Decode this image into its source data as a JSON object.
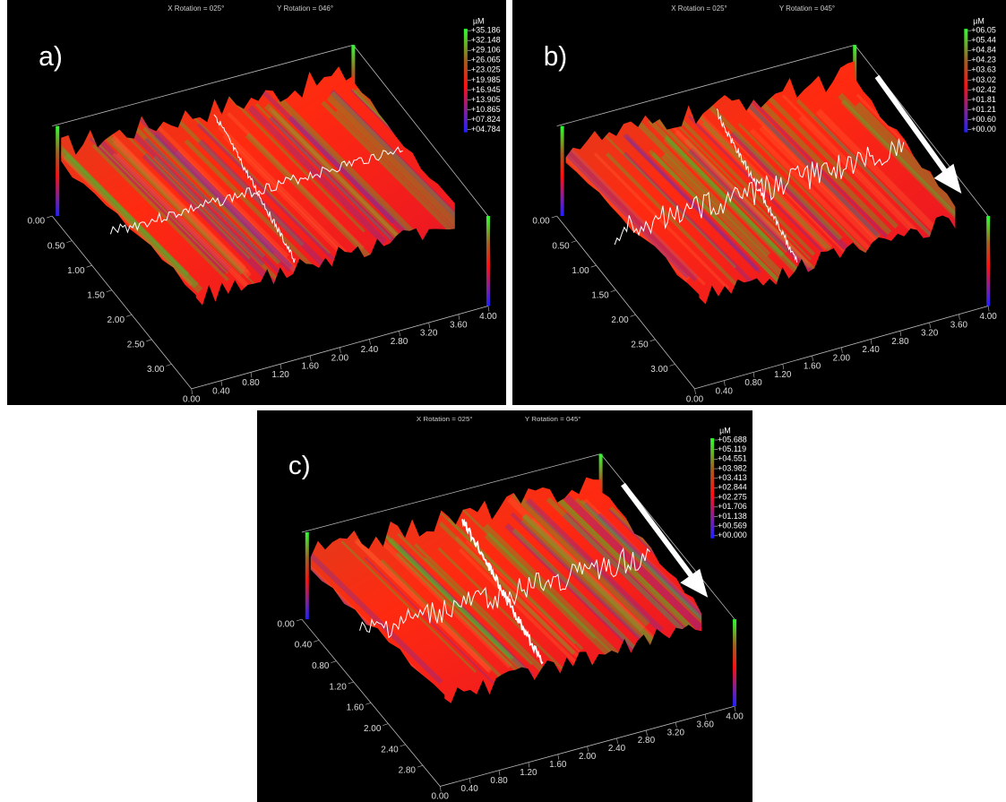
{
  "panels": [
    {
      "label": "a)",
      "header": [
        "X Rotation = 025°",
        "Y Rotation = 046°"
      ],
      "unit": "µM",
      "colorbar": [
        "+35.186",
        "+32.148",
        "+29.106",
        "+26.065",
        "+23.025",
        "+19.985",
        "+16.945",
        "+13.905",
        "+10.865",
        "+07.824",
        "+04.784"
      ],
      "left_ticks": [
        "0.00",
        "0.50",
        "1.00",
        "1.50",
        "2.00",
        "2.50",
        "3.00"
      ],
      "front_ticks": [
        "0.00",
        "0.40",
        "0.80",
        "1.20",
        "1.60",
        "2.00",
        "2.40",
        "2.80",
        "3.20",
        "3.60",
        "4.00"
      ]
    },
    {
      "label": "b)",
      "header": [
        "X Rotation = 025°",
        "Y Rotation = 045°"
      ],
      "unit": "µM",
      "colorbar": [
        "+06.05",
        "+05.44",
        "+04.84",
        "+04.23",
        "+03.63",
        "+03.02",
        "+02.42",
        "+01.81",
        "+01.21",
        "+00.60",
        "+00.00"
      ],
      "left_ticks": [
        "0.00",
        "0.50",
        "1.00",
        "1.50",
        "2.00",
        "2.50",
        "3.00"
      ],
      "front_ticks": [
        "0.00",
        "0.40",
        "0.80",
        "1.20",
        "1.60",
        "2.00",
        "2.40",
        "2.80",
        "3.20",
        "3.60",
        "4.00"
      ]
    },
    {
      "label": "c)",
      "header": [
        "X Rotation = 025°",
        "Y Rotation = 045°"
      ],
      "unit": "µM",
      "colorbar": [
        "+05.688",
        "+05.119",
        "+04.551",
        "+03.982",
        "+03.413",
        "+02.844",
        "+02.275",
        "+01.706",
        "+01.138",
        "+00.569",
        "+00.000"
      ],
      "left_ticks": [
        "0.00",
        "0.40",
        "0.80",
        "1.20",
        "1.60",
        "2.00",
        "2.40",
        "2.80"
      ],
      "front_ticks": [
        "0.00",
        "0.40",
        "0.80",
        "1.20",
        "1.60",
        "2.00",
        "2.40",
        "2.80",
        "3.20",
        "3.60",
        "4.00"
      ]
    }
  ]
}
